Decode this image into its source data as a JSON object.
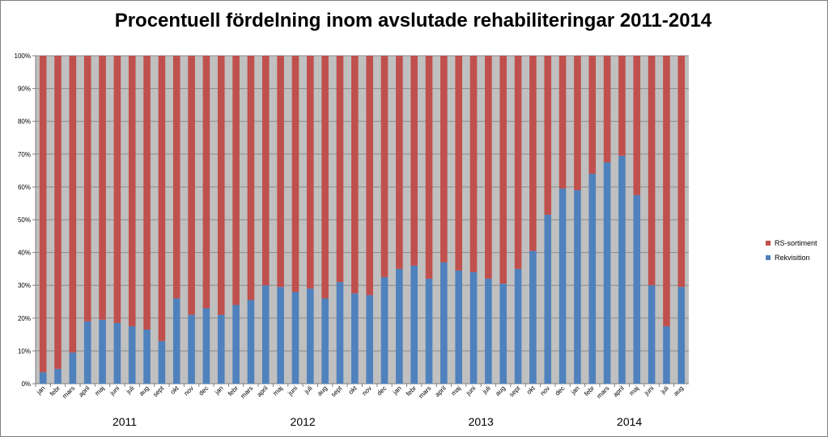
{
  "chart_data": {
    "type": "bar",
    "stacked": "percent",
    "title": "Procentuell fördelning inom avslutade rehabiliteringar 2011-2014",
    "categories": [
      "jan",
      "febr",
      "mars",
      "april",
      "maj",
      "juni",
      "juli",
      "aug",
      "sept",
      "okt",
      "nov",
      "dec",
      "jan",
      "febr",
      "mars",
      "april",
      "maj",
      "juni",
      "juli",
      "aug",
      "sept",
      "okt",
      "nov",
      "dec",
      "jan",
      "febr",
      "mars",
      "april",
      "maj",
      "juni",
      "juli",
      "aug",
      "sept",
      "okt",
      "nov",
      "dec",
      "jan",
      "febr",
      "mars",
      "april",
      "maj",
      "juni",
      "juli",
      "aug"
    ],
    "year_labels": [
      {
        "label": "2011",
        "from": 0,
        "to": 11
      },
      {
        "label": "2012",
        "from": 12,
        "to": 23
      },
      {
        "label": "2013",
        "from": 24,
        "to": 35
      },
      {
        "label": "2014",
        "from": 36,
        "to": 43
      }
    ],
    "series": [
      {
        "name": "Rekvisition",
        "color": "#4f81bd",
        "values": [
          3.5,
          4.5,
          9.5,
          19,
          19.5,
          18.5,
          17.5,
          16.5,
          13,
          26,
          21,
          23,
          21,
          24,
          25.5,
          30,
          29.5,
          28,
          29,
          26,
          31,
          27.5,
          27,
          32.5,
          35,
          36,
          32,
          37,
          34.5,
          34,
          32,
          30.5,
          35,
          40.5,
          51.5,
          59.5,
          59,
          64,
          67.5,
          69.5,
          57.5,
          30,
          17.5,
          29.5
        ]
      },
      {
        "name": "RS-sortiment",
        "color": "#c0504d",
        "values": [
          96.5,
          95.5,
          90.5,
          81,
          80.5,
          81.5,
          82.5,
          83.5,
          87,
          74,
          79,
          77,
          79,
          76,
          74.5,
          70,
          70.5,
          72,
          71,
          74,
          69,
          72.5,
          73,
          67.5,
          65,
          64,
          68,
          63,
          65.5,
          66,
          68,
          69.5,
          65,
          59.5,
          48.5,
          40.5,
          41,
          36,
          32.5,
          30.5,
          42.5,
          70,
          82.5,
          70.5
        ]
      }
    ],
    "y_ticks": [
      "0%",
      "10%",
      "20%",
      "30%",
      "40%",
      "50%",
      "60%",
      "70%",
      "80%",
      "90%",
      "100%"
    ],
    "ylim": [
      0,
      100
    ],
    "grid": true,
    "legend_position": "right",
    "plot_background": "#c0c0c0"
  }
}
